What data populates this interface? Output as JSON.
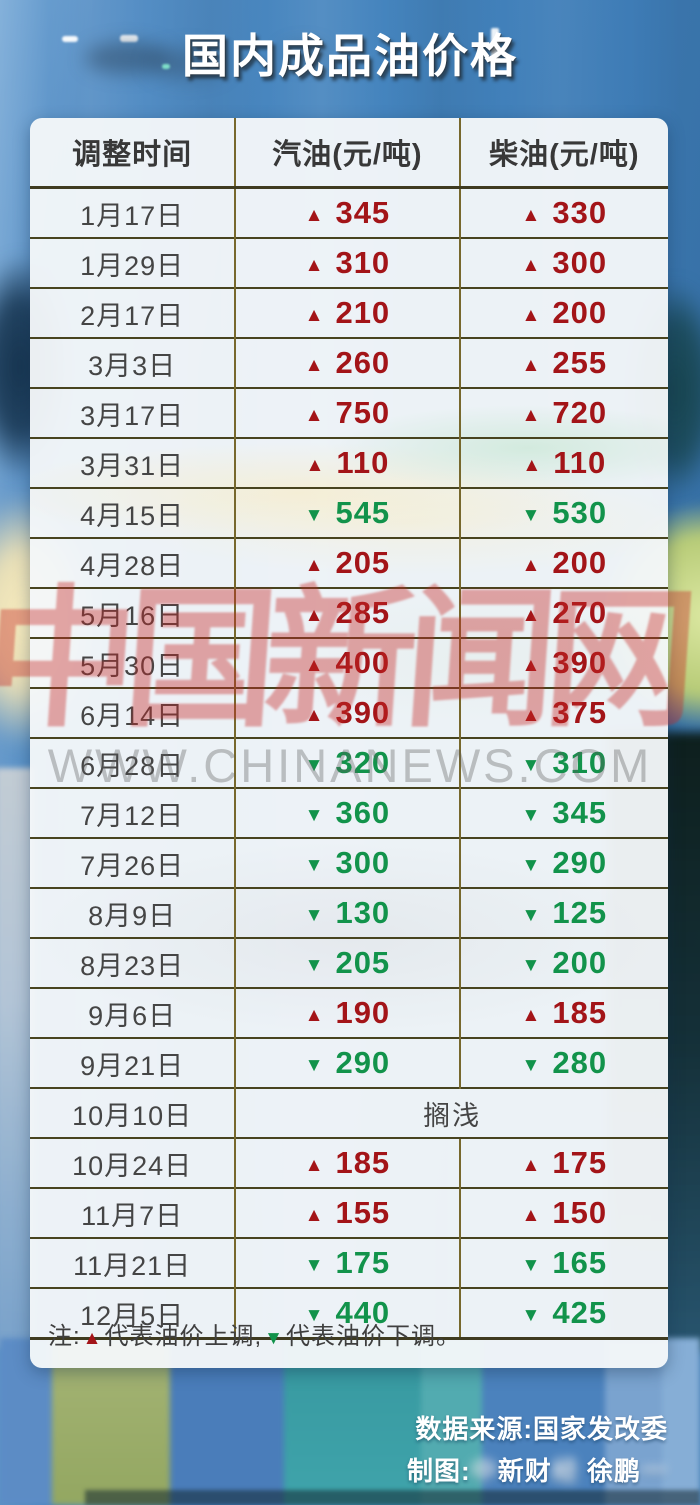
{
  "title": "国内成品油价格",
  "watermark": {
    "calligraphy": "中国新闻网",
    "url_text": "WWW.CHINANEWS.COM"
  },
  "glyphs": {
    "up": "▲",
    "down": "▼"
  },
  "colors": {
    "up": "#a31418",
    "down": "#12934b",
    "grid": "#48441f",
    "grid_vertical": "#77682d",
    "card_bg": "#f4f7f9"
  },
  "table": {
    "headers": [
      "调整时间",
      "汽油(元/吨)",
      "柴油(元/吨)"
    ],
    "rows": [
      {
        "date": "1月17日",
        "gasoline": {
          "dir": "up",
          "value": "345"
        },
        "diesel": {
          "dir": "up",
          "value": "330"
        }
      },
      {
        "date": "1月29日",
        "gasoline": {
          "dir": "up",
          "value": "310"
        },
        "diesel": {
          "dir": "up",
          "value": "300"
        }
      },
      {
        "date": "2月17日",
        "gasoline": {
          "dir": "up",
          "value": "210"
        },
        "diesel": {
          "dir": "up",
          "value": "200"
        }
      },
      {
        "date": "3月3日",
        "gasoline": {
          "dir": "up",
          "value": "260"
        },
        "diesel": {
          "dir": "up",
          "value": "255"
        }
      },
      {
        "date": "3月17日",
        "gasoline": {
          "dir": "up",
          "value": "750"
        },
        "diesel": {
          "dir": "up",
          "value": "720"
        }
      },
      {
        "date": "3月31日",
        "gasoline": {
          "dir": "up",
          "value": "110"
        },
        "diesel": {
          "dir": "up",
          "value": "110"
        }
      },
      {
        "date": "4月15日",
        "gasoline": {
          "dir": "down",
          "value": "545"
        },
        "diesel": {
          "dir": "down",
          "value": "530"
        }
      },
      {
        "date": "4月28日",
        "gasoline": {
          "dir": "up",
          "value": "205"
        },
        "diesel": {
          "dir": "up",
          "value": "200"
        }
      },
      {
        "date": "5月16日",
        "gasoline": {
          "dir": "up",
          "value": "285"
        },
        "diesel": {
          "dir": "up",
          "value": "270"
        }
      },
      {
        "date": "5月30日",
        "gasoline": {
          "dir": "up",
          "value": "400"
        },
        "diesel": {
          "dir": "up",
          "value": "390"
        }
      },
      {
        "date": "6月14日",
        "gasoline": {
          "dir": "up",
          "value": "390"
        },
        "diesel": {
          "dir": "up",
          "value": "375"
        }
      },
      {
        "date": "6月28日",
        "gasoline": {
          "dir": "down",
          "value": "320"
        },
        "diesel": {
          "dir": "down",
          "value": "310"
        }
      },
      {
        "date": "7月12日",
        "gasoline": {
          "dir": "down",
          "value": "360"
        },
        "diesel": {
          "dir": "down",
          "value": "345"
        }
      },
      {
        "date": "7月26日",
        "gasoline": {
          "dir": "down",
          "value": "300"
        },
        "diesel": {
          "dir": "down",
          "value": "290"
        }
      },
      {
        "date": "8月9日",
        "gasoline": {
          "dir": "down",
          "value": "130"
        },
        "diesel": {
          "dir": "down",
          "value": "125"
        }
      },
      {
        "date": "8月23日",
        "gasoline": {
          "dir": "down",
          "value": "205"
        },
        "diesel": {
          "dir": "down",
          "value": "200"
        }
      },
      {
        "date": "9月6日",
        "gasoline": {
          "dir": "up",
          "value": "190"
        },
        "diesel": {
          "dir": "up",
          "value": "185"
        }
      },
      {
        "date": "9月21日",
        "gasoline": {
          "dir": "down",
          "value": "290"
        },
        "diesel": {
          "dir": "down",
          "value": "280"
        }
      },
      {
        "date": "10月10日",
        "merged": "搁浅"
      },
      {
        "date": "10月24日",
        "gasoline": {
          "dir": "up",
          "value": "185"
        },
        "diesel": {
          "dir": "up",
          "value": "175"
        }
      },
      {
        "date": "11月7日",
        "gasoline": {
          "dir": "up",
          "value": "155"
        },
        "diesel": {
          "dir": "up",
          "value": "150"
        }
      },
      {
        "date": "11月21日",
        "gasoline": {
          "dir": "down",
          "value": "175"
        },
        "diesel": {
          "dir": "down",
          "value": "165"
        }
      },
      {
        "date": "12月5日",
        "gasoline": {
          "dir": "down",
          "value": "440"
        },
        "diesel": {
          "dir": "down",
          "value": "425"
        }
      }
    ]
  },
  "note": {
    "prefix": "注:",
    "up_symbol": "▲",
    "up_text": "代表油价上调,",
    "down_symbol": "▼",
    "down_text": "代表油价下调。"
  },
  "footer": {
    "source": "数据来源:国家发改委",
    "credit": [
      {
        "text": "制图:",
        "blurred": false
      },
      {
        "text": "中",
        "blurred": true
      },
      {
        "text": "新财",
        "blurred": false
      },
      {
        "text": "经",
        "blurred": true
      },
      {
        "text": " 徐鹏",
        "blurred": false
      },
      {
        "text": "一",
        "blurred": true
      }
    ]
  },
  "chart_data": {
    "type": "table",
    "title": "国内成品油价格",
    "columns": [
      "调整时间",
      "汽油(元/吨)",
      "柴油(元/吨)"
    ],
    "categories": [
      "1月17日",
      "1月29日",
      "2月17日",
      "3月3日",
      "3月17日",
      "3月31日",
      "4月15日",
      "4月28日",
      "5月16日",
      "5月30日",
      "6月14日",
      "6月28日",
      "7月12日",
      "7月26日",
      "8月9日",
      "8月23日",
      "9月6日",
      "9月21日",
      "10月10日",
      "10月24日",
      "11月7日",
      "11月21日",
      "12月5日"
    ],
    "series": [
      {
        "name": "汽油(元/吨)",
        "values": [
          345,
          310,
          210,
          260,
          750,
          110,
          -545,
          205,
          285,
          400,
          390,
          -320,
          -360,
          -300,
          -130,
          -205,
          190,
          -290,
          null,
          185,
          155,
          -175,
          -440
        ]
      },
      {
        "name": "柴油(元/吨)",
        "values": [
          330,
          300,
          200,
          255,
          720,
          110,
          -530,
          200,
          270,
          390,
          375,
          -310,
          -345,
          -290,
          -125,
          -200,
          185,
          -280,
          null,
          175,
          150,
          -165,
          -425
        ]
      }
    ],
    "annotations": [
      "10月10日: 搁浅 (no adjustment)",
      "▲ = price increase (red)",
      "▼ = price decrease (green)"
    ],
    "legend_position": "none",
    "grid": true
  }
}
